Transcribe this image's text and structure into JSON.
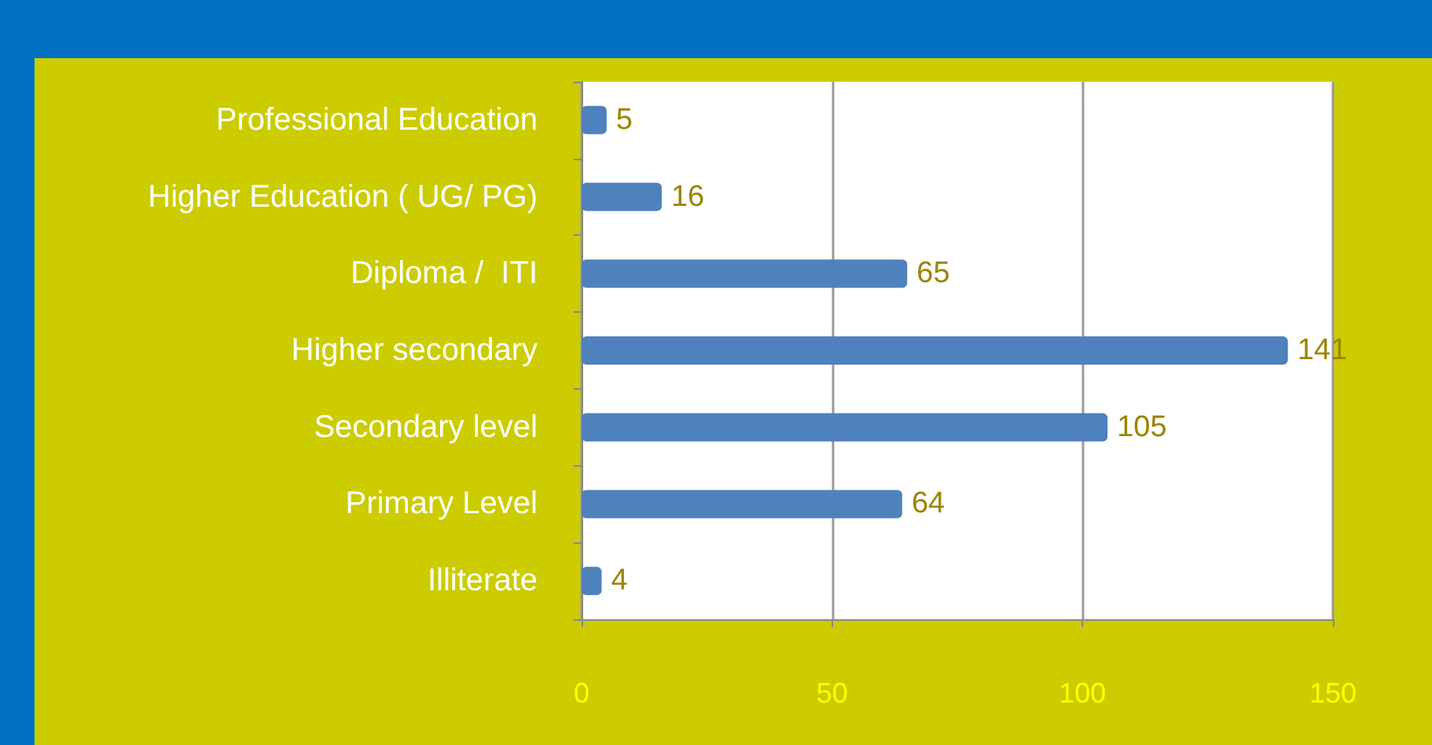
{
  "chart_data": {
    "type": "bar",
    "orientation": "horizontal",
    "categories": [
      "Professional Education",
      "Higher Education ( UG/ PG)",
      "Diploma /  ITI",
      "Higher secondary",
      "Secondary level",
      "Primary Level",
      "Illiterate"
    ],
    "values": [
      5,
      16,
      65,
      141,
      105,
      64,
      4
    ],
    "color": "#4f81bd",
    "xlim": [
      0,
      150
    ],
    "xticks": [
      0,
      50,
      100,
      150
    ],
    "grid": "x",
    "data_labels": true
  }
}
